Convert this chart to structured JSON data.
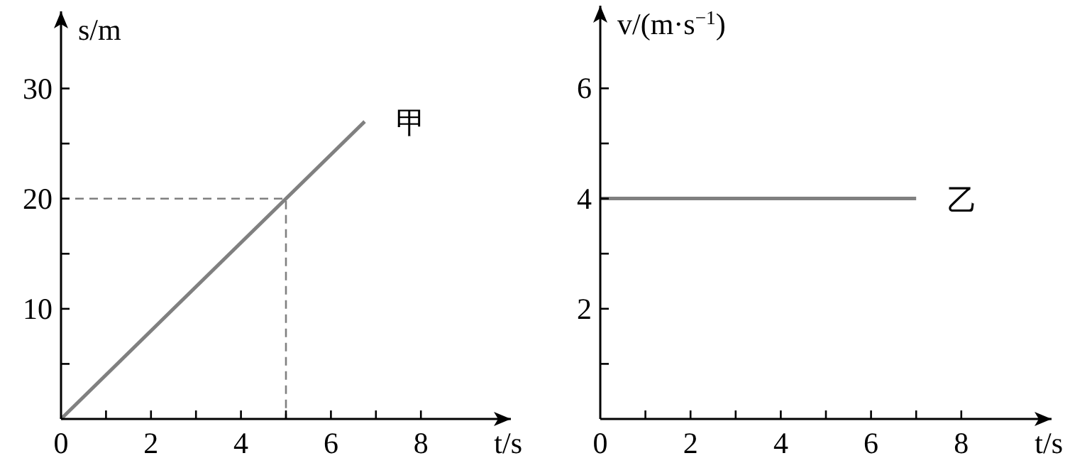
{
  "chart_data": [
    {
      "type": "line",
      "xlabel": "t/s",
      "ylabel": "s/m",
      "xlim": [
        0,
        10
      ],
      "ylim": [
        0,
        37
      ],
      "xticks": [
        0,
        {
          "value": 1,
          "label": null
        },
        2,
        {
          "value": 3,
          "label": null
        },
        4,
        {
          "value": 5,
          "label": null
        },
        6,
        {
          "value": 7,
          "label": null
        },
        8
      ],
      "yticks": [
        {
          "value": 5,
          "label": null
        },
        10,
        {
          "value": 15,
          "label": null
        },
        20,
        {
          "value": 25,
          "label": null
        },
        30
      ],
      "series": [
        {
          "name": "甲",
          "color": "#808080",
          "x": [
            0,
            6.75
          ],
          "values": [
            0,
            27
          ]
        },
        {
          "color": "#808080",
          "line_style": "dashed",
          "x": [
            0,
            5,
            5
          ],
          "values": [
            20,
            20,
            0
          ]
        }
      ]
    },
    {
      "type": "line",
      "xlabel": "t/s",
      "ylabel": "v/(m·s$^{−1}$)",
      "xlim": [
        0,
        10
      ],
      "ylim": [
        0,
        7.5
      ],
      "xticks": [
        0,
        {
          "value": 1,
          "label": null
        },
        2,
        {
          "value": 3,
          "label": null
        },
        4,
        {
          "value": 5,
          "label": null
        },
        6,
        {
          "value": 7,
          "label": null
        },
        8
      ],
      "yticks": [
        {
          "value": 1,
          "label": null
        },
        2,
        {
          "value": 3,
          "label": null
        },
        4,
        {
          "value": 5,
          "label": null
        },
        6
      ],
      "series": [
        {
          "name": "乙",
          "color": "#808080",
          "x": [
            0,
            7
          ],
          "values": [
            4,
            4
          ]
        }
      ]
    }
  ]
}
